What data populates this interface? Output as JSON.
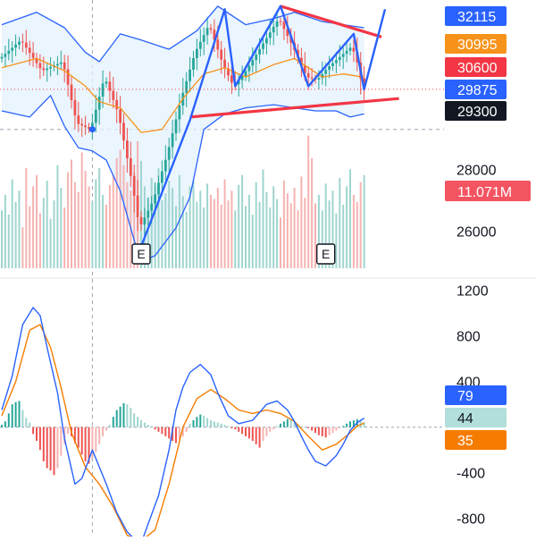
{
  "colors": {
    "up": "#26a69a",
    "down": "#ef5350",
    "upVol": "#9fd5cf",
    "downVol": "#f5b3b1",
    "bbLine": "#2962ff",
    "bbFill": "#e3f2fd",
    "basis": "#f7931a",
    "macd": "#2962ff",
    "signal": "#f57c00",
    "trendRed": "#f23645",
    "trendBlue": "#2962ff",
    "grid": "#9aa4b2",
    "axisText": "#131722",
    "separator": "#e6e6e6"
  },
  "price_badges": [
    {
      "text": "32115",
      "value": 32115,
      "bg": "#2962ff",
      "fg": "#ffffff"
    },
    {
      "text": "30995",
      "value": 30995,
      "bg": "#f7931a",
      "fg": "#ffffff"
    },
    {
      "text": "30600",
      "value": 30600,
      "bg": "#f23645",
      "fg": "#ffffff"
    },
    {
      "text": "29875",
      "value": 29875,
      "bg": "#2962ff",
      "fg": "#ffffff"
    },
    {
      "text": "29300",
      "value": 29300,
      "bg": "#131722",
      "fg": "#ffffff"
    }
  ],
  "price_ticks": [
    "28000",
    "26000"
  ],
  "volume_badge": {
    "text": "11.071M",
    "bg": "#f23645",
    "fg": "#ffffff"
  },
  "macd_ticks": [
    "1200",
    "800",
    "400",
    "-400",
    "-800"
  ],
  "macd_badges": [
    {
      "text": "79",
      "value": 79,
      "bg": "#2962ff",
      "fg": "#ffffff"
    },
    {
      "text": "44",
      "value": 44,
      "bg": "#b2dfdb",
      "fg": "#131722"
    },
    {
      "text": "35",
      "value": 35,
      "bg": "#f57c00",
      "fg": "#ffffff"
    }
  ],
  "event_markers": [
    {
      "label": "E",
      "bar": 40
    },
    {
      "label": "E",
      "bar": 93
    }
  ],
  "crosshair": {
    "bar": 26,
    "price": 29300
  },
  "chart_data": [
    {
      "type": "candlestick",
      "panel": "price",
      "ylim": [
        24500,
        33500
      ],
      "y_ticks": [
        26000,
        28000
      ],
      "bars": 105,
      "price_path": [
        [
          0,
          31600
        ],
        [
          6,
          32200
        ],
        [
          12,
          31200
        ],
        [
          18,
          31500
        ],
        [
          22,
          29500
        ],
        [
          26,
          29300
        ],
        [
          30,
          31000
        ],
        [
          34,
          29800
        ],
        [
          38,
          27500
        ],
        [
          40,
          26100
        ],
        [
          44,
          27000
        ],
        [
          48,
          28500
        ],
        [
          52,
          30300
        ],
        [
          56,
          31800
        ],
        [
          60,
          32700
        ],
        [
          64,
          31400
        ],
        [
          67,
          30700
        ],
        [
          70,
          31100
        ],
        [
          75,
          32000
        ],
        [
          80,
          32900
        ],
        [
          84,
          32000
        ],
        [
          88,
          31000
        ],
        [
          91,
          30900
        ],
        [
          94,
          31300
        ],
        [
          98,
          31700
        ],
        [
          101,
          32000
        ],
        [
          103,
          31300
        ],
        [
          104,
          30600
        ]
      ],
      "bollinger": {
        "upper": [
          [
            0,
            32700
          ],
          [
            10,
            33100
          ],
          [
            18,
            32600
          ],
          [
            24,
            31800
          ],
          [
            28,
            31500
          ],
          [
            34,
            32400
          ],
          [
            40,
            32200
          ],
          [
            48,
            31900
          ],
          [
            56,
            32500
          ],
          [
            62,
            33300
          ],
          [
            70,
            32700
          ],
          [
            78,
            32900
          ],
          [
            84,
            33100
          ],
          [
            92,
            32800
          ],
          [
            98,
            32700
          ],
          [
            104,
            32600
          ]
        ],
        "basis": [
          [
            0,
            31300
          ],
          [
            10,
            31600
          ],
          [
            18,
            31200
          ],
          [
            24,
            30700
          ],
          [
            28,
            30200
          ],
          [
            34,
            30000
          ],
          [
            40,
            29200
          ],
          [
            46,
            29300
          ],
          [
            52,
            30300
          ],
          [
            58,
            31100
          ],
          [
            64,
            31300
          ],
          [
            70,
            31000
          ],
          [
            78,
            31400
          ],
          [
            84,
            31600
          ],
          [
            92,
            31000
          ],
          [
            98,
            31100
          ],
          [
            104,
            30995
          ]
        ],
        "lower": [
          [
            0,
            29900
          ],
          [
            8,
            29700
          ],
          [
            14,
            30400
          ],
          [
            18,
            29400
          ],
          [
            22,
            28700
          ],
          [
            26,
            28600
          ],
          [
            30,
            28300
          ],
          [
            34,
            27300
          ],
          [
            38,
            25700
          ],
          [
            40,
            25000
          ],
          [
            44,
            25200
          ],
          [
            50,
            26100
          ],
          [
            54,
            27100
          ],
          [
            58,
            29300
          ],
          [
            64,
            29800
          ],
          [
            70,
            30000
          ],
          [
            78,
            30100
          ],
          [
            84,
            30000
          ],
          [
            90,
            29900
          ],
          [
            96,
            29900
          ],
          [
            100,
            29700
          ],
          [
            104,
            29800
          ]
        ]
      },
      "trendlines": [
        {
          "color": "red",
          "points": [
            [
              54,
              29700
            ],
            [
              114,
              30300
            ]
          ]
        },
        {
          "color": "red",
          "points": [
            [
              80,
              33300
            ],
            [
              109,
              32300
            ]
          ]
        },
        {
          "color": "blue",
          "points": [
            [
              40,
              25500
            ],
            [
              54,
              29600
            ],
            [
              64,
              33200
            ],
            [
              67,
              30700
            ],
            [
              80,
              33300
            ],
            [
              88,
              30700
            ],
            [
              101,
              32400
            ],
            [
              104,
              30600
            ],
            [
              110,
              33200
            ]
          ]
        }
      ],
      "volume": {
        "badge": "11.071M",
        "values": [
          41,
          52,
          38,
          63,
          47,
          55,
          29,
          71,
          44,
          58,
          66,
          39,
          50,
          62,
          35,
          48,
          73,
          57,
          43,
          68,
          77,
          61,
          54,
          82,
          69,
          58,
          47,
          63,
          71,
          52,
          45,
          59,
          66,
          78,
          84,
          73,
          61,
          55,
          68,
          90,
          76,
          58,
          50,
          64,
          59,
          71,
          48,
          53,
          62,
          57,
          44,
          66,
          51,
          40,
          58,
          62,
          47,
          55,
          43,
          60,
          52,
          49,
          57,
          45,
          63,
          48,
          55,
          41,
          59,
          66,
          44,
          52,
          38,
          61,
          47,
          70,
          54,
          43,
          58,
          49,
          36,
          62,
          53,
          46,
          57,
          41,
          65,
          50,
          94,
          78,
          46,
          52,
          41,
          60,
          48,
          55,
          39,
          64,
          45,
          58,
          70,
          52,
          47,
          61,
          66
        ]
      }
    },
    {
      "type": "macd",
      "panel": "indicator",
      "ylim": [
        -960,
        1300
      ],
      "y_ticks": [
        1200,
        800,
        400,
        -400,
        -800
      ],
      "macd": [
        [
          0,
          150
        ],
        [
          3,
          450
        ],
        [
          6,
          900
        ],
        [
          9,
          1050
        ],
        [
          11,
          980
        ],
        [
          13,
          700
        ],
        [
          16,
          300
        ],
        [
          18,
          -100
        ],
        [
          21,
          -500
        ],
        [
          23,
          -450
        ],
        [
          26,
          -200
        ],
        [
          30,
          -500
        ],
        [
          33,
          -750
        ],
        [
          36,
          -920
        ],
        [
          38,
          -980
        ],
        [
          40,
          -1020
        ],
        [
          42,
          -850
        ],
        [
          45,
          -600
        ],
        [
          48,
          -200
        ],
        [
          50,
          150
        ],
        [
          52,
          350
        ],
        [
          54,
          480
        ],
        [
          57,
          550
        ],
        [
          60,
          460
        ],
        [
          62,
          300
        ],
        [
          65,
          100
        ],
        [
          68,
          30
        ],
        [
          72,
          60
        ],
        [
          76,
          200
        ],
        [
          79,
          230
        ],
        [
          82,
          150
        ],
        [
          84,
          50
        ],
        [
          86,
          -80
        ],
        [
          88,
          -200
        ],
        [
          90,
          -300
        ],
        [
          93,
          -340
        ],
        [
          96,
          -250
        ],
        [
          98,
          -150
        ],
        [
          100,
          -30
        ],
        [
          102,
          40
        ],
        [
          104,
          79
        ]
      ],
      "signal": [
        [
          0,
          100
        ],
        [
          4,
          400
        ],
        [
          8,
          850
        ],
        [
          11,
          900
        ],
        [
          14,
          700
        ],
        [
          17,
          350
        ],
        [
          20,
          -50
        ],
        [
          24,
          -350
        ],
        [
          28,
          -500
        ],
        [
          32,
          -700
        ],
        [
          36,
          -950
        ],
        [
          40,
          -1000
        ],
        [
          44,
          -900
        ],
        [
          48,
          -500
        ],
        [
          52,
          0
        ],
        [
          56,
          250
        ],
        [
          60,
          330
        ],
        [
          64,
          250
        ],
        [
          68,
          150
        ],
        [
          72,
          120
        ],
        [
          76,
          150
        ],
        [
          80,
          120
        ],
        [
          84,
          50
        ],
        [
          88,
          -80
        ],
        [
          92,
          -200
        ],
        [
          96,
          -150
        ],
        [
          100,
          -50
        ],
        [
          102,
          10
        ],
        [
          104,
          35
        ]
      ],
      "histogram": [
        20,
        50,
        120,
        200,
        220,
        230,
        150,
        80,
        40,
        -60,
        -120,
        -200,
        -300,
        -360,
        -380,
        -420,
        -360,
        -250,
        -150,
        -60,
        -80,
        -140,
        -180,
        -240,
        -300,
        -320,
        -280,
        -220,
        -150,
        -80,
        -30,
        20,
        90,
        150,
        180,
        210,
        200,
        170,
        120,
        90,
        60,
        40,
        20,
        10,
        -20,
        -40,
        -60,
        -80,
        -100,
        -120,
        -140,
        -110,
        -80,
        -40,
        30,
        60,
        90,
        110,
        100,
        80,
        60,
        50,
        40,
        30,
        20,
        10,
        -10,
        -20,
        -40,
        -60,
        -80,
        -100,
        -120,
        -150,
        -180,
        -120,
        -80,
        -40,
        -20,
        10,
        30,
        50,
        70,
        60,
        40,
        20,
        10,
        5,
        -10,
        -30,
        -50,
        -70,
        -80,
        -90,
        -70,
        -50,
        -30,
        -10,
        10,
        30,
        50,
        60,
        70,
        60,
        44
      ]
    }
  ]
}
